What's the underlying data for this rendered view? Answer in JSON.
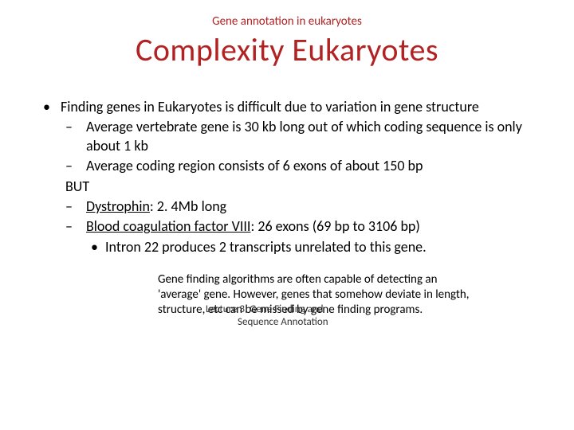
{
  "colors": {
    "accent": "#b22222",
    "text": "#000000",
    "background": "#ffffff"
  },
  "header": {
    "small": "Gene annotation in eukaryotes",
    "title": "Complexity Eukaryotes"
  },
  "bullets": {
    "l1": "Finding genes in Eukaryotes is difficult due to variation in gene structure",
    "l2a": "Average vertebrate gene is 30 kb long out of which coding sequence is only about 1 kb",
    "l2b": "Average coding region consists of 6 exons of about 150 bp",
    "but": "BUT",
    "l2c_u": "Dystrophin",
    "l2c_rest": ": 2. 4Mb long",
    "l2d_u": "Blood coagulation factor VIII",
    "l2d_rest": ": 26 exons (69 bp to 3106 bp)",
    "l3a": "Intron 22 produces 2 transcripts unrelated to this gene."
  },
  "note": "Gene finding algorithms are often capable of detecting an 'average' gene. However, genes that somehow deviate in length, structure, etc can be missed by gene finding programs.",
  "footer": {
    "line1": "Lecture 3. Gene Finding and",
    "line2": "Sequence Annotation"
  },
  "typography": {
    "title_fontsize": 40,
    "header_small_fontsize": 15,
    "body_fontsize": 18,
    "note_fontsize": 15,
    "footer_fontsize": 13
  }
}
